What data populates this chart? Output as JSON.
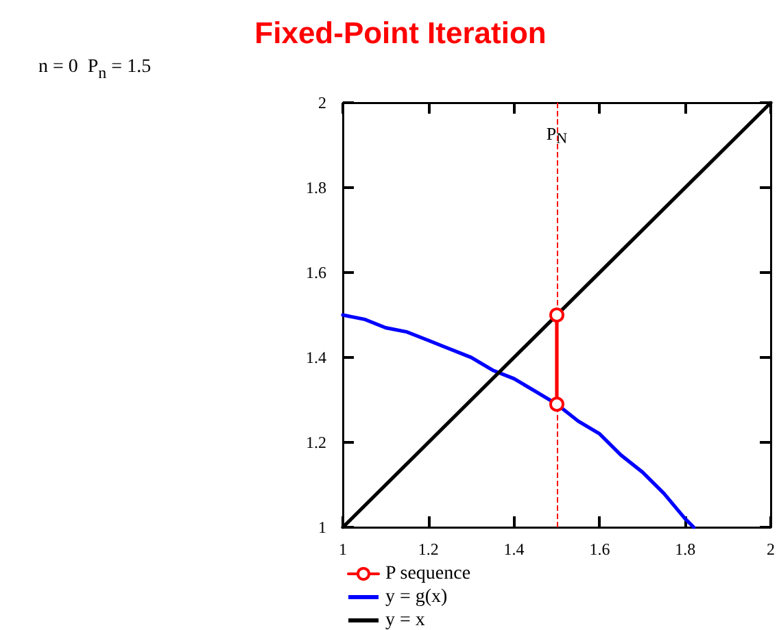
{
  "chart_data": {
    "type": "line",
    "title": "Fixed-Point Iteration",
    "annotations": [
      "n = 0  P$_{n}$ = 1.5"
    ],
    "xlim": [
      1,
      2
    ],
    "ylim": [
      1,
      2
    ],
    "xticks": [
      1,
      1.2,
      1.4,
      1.6,
      1.8,
      2
    ],
    "yticks": [
      1,
      1.2,
      1.4,
      1.6,
      1.8,
      2
    ],
    "grid": false,
    "legend": "bottom left",
    "series": [
      {
        "name": "P sequence",
        "color": "#ff0000",
        "x": [
          1.5,
          1.5
        ],
        "values": [
          1.5,
          1.29
        ],
        "marker": "circle"
      },
      {
        "name": "y = g(x)",
        "color": "#0000ff",
        "x": [
          1,
          1.05,
          1.1,
          1.15,
          1.2,
          1.25,
          1.3,
          1.35,
          1.4,
          1.45,
          1.5,
          1.55,
          1.6,
          1.65,
          1.7,
          1.75,
          1.8,
          1.82
        ],
        "values": [
          1.5,
          1.49,
          1.47,
          1.46,
          1.44,
          1.42,
          1.4,
          1.37,
          1.35,
          1.32,
          1.29,
          1.25,
          1.22,
          1.17,
          1.13,
          1.08,
          1.02,
          1.0
        ]
      },
      {
        "name": "y = x",
        "color": "#000000",
        "x": [
          1,
          2
        ],
        "values": [
          1,
          2
        ]
      }
    ],
    "ref_lines": [
      {
        "axis": "x",
        "value": 1.5,
        "label": "P$_{N}$",
        "color": "#ff0000",
        "line_style": "dashed"
      }
    ]
  }
}
